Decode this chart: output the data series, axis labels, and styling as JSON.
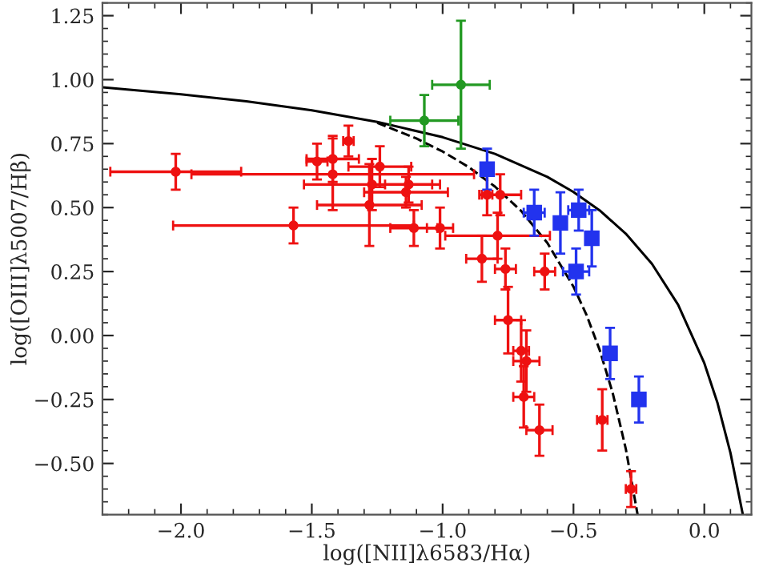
{
  "chart_data": {
    "type": "scatter",
    "xlabel": "log([NII]λ6583/Hα)",
    "ylabel": "log([OIII]λ5007/Hβ)",
    "xlim": [
      -2.3,
      0.18
    ],
    "ylim": [
      -0.7,
      1.3
    ],
    "xticks": [
      {
        "value": -2.0,
        "label": "−2.0"
      },
      {
        "value": -1.5,
        "label": "−1.5"
      },
      {
        "value": -1.0,
        "label": "−1.0"
      },
      {
        "value": -0.5,
        "label": "−0.5"
      },
      {
        "value": 0.0,
        "label": "0.0"
      }
    ],
    "yticks": [
      {
        "value": -0.5,
        "label": "−0.50"
      },
      {
        "value": -0.25,
        "label": "−0.25"
      },
      {
        "value": 0.0,
        "label": "0.00"
      },
      {
        "value": 0.25,
        "label": "0.25"
      },
      {
        "value": 0.5,
        "label": "0.50"
      },
      {
        "value": 0.75,
        "label": "0.75"
      },
      {
        "value": 1.0,
        "label": "1.00"
      },
      {
        "value": 1.25,
        "label": "1.25"
      }
    ],
    "grid": false,
    "legend": false,
    "series": [
      {
        "type": "line",
        "color": "#000000",
        "line_style": "solid",
        "x": [
          -2.3,
          -2.0,
          -1.75,
          -1.5,
          -1.25,
          -1.0,
          -0.8,
          -0.6,
          -0.5,
          -0.4,
          -0.3,
          -0.2,
          -0.1,
          0.0,
          0.05,
          0.1,
          0.147
        ],
        "values": [
          0.97,
          0.943,
          0.915,
          0.88,
          0.835,
          0.775,
          0.71,
          0.62,
          0.561,
          0.489,
          0.398,
          0.28,
          0.12,
          -0.108,
          -0.262,
          -0.459,
          -0.699
        ]
      },
      {
        "type": "line",
        "color": "#000000",
        "line_style": "dashed",
        "x": [
          -1.25,
          -1.1,
          -1.0,
          -0.9,
          -0.8,
          -0.7,
          -0.6,
          -0.5,
          -0.45,
          -0.4,
          -0.35,
          -0.3,
          -0.255
        ],
        "values": [
          0.831,
          0.77,
          0.719,
          0.658,
          0.582,
          0.487,
          0.362,
          0.191,
          0.08,
          -0.056,
          -0.225,
          -0.443,
          -0.7
        ]
      },
      {
        "color": "#ee1111",
        "marker": "circle",
        "x": [
          -2.02,
          -1.57,
          -1.48,
          -1.42,
          -1.42,
          -1.36,
          -1.24,
          -1.27,
          -1.13,
          -1.14,
          -1.28,
          -1.11,
          -1.01,
          -0.83,
          -0.78,
          -0.79,
          -0.85,
          -0.76,
          -0.61,
          -0.75,
          -0.7,
          -0.68,
          -0.69,
          -0.63,
          -0.39,
          -0.28
        ],
        "values": [
          0.64,
          0.43,
          0.68,
          0.69,
          0.63,
          0.76,
          0.66,
          0.59,
          0.59,
          0.56,
          0.51,
          0.42,
          0.42,
          0.55,
          0.55,
          0.39,
          0.3,
          0.26,
          0.25,
          0.06,
          -0.06,
          -0.1,
          -0.24,
          -0.37,
          -0.33,
          -0.6
        ],
        "errors": [
          0.07,
          0.07,
          0.07,
          0.09,
          0.14,
          0.06,
          0.08,
          0.1,
          0.07,
          0.06,
          0.16,
          0.07,
          0.08,
          0.08,
          0.08,
          0.09,
          0.09,
          0.08,
          0.07,
          0.13,
          0.12,
          0.12,
          0.12,
          0.1,
          0.12,
          0.07
        ],
        "xerrors": [
          0.25,
          0.46,
          0.04,
          0.1,
          0.54,
          0.02,
          0.12,
          0.26,
          0.09,
          0.16,
          0.2,
          0.09,
          0.05,
          0.02,
          0.08,
          0.2,
          0.06,
          0.04,
          0.04,
          0.05,
          0.03,
          0.05,
          0.04,
          0.05,
          0.02,
          0.02
        ]
      },
      {
        "color": "#229922",
        "marker": "circle",
        "x": [
          -1.07,
          -0.93
        ],
        "values": [
          0.84,
          0.98
        ],
        "errors": [
          0.1,
          0.25
        ],
        "xerrors": [
          0.13,
          0.11
        ]
      },
      {
        "color": "#2233ee",
        "marker": "square",
        "x": [
          -0.83,
          -0.65,
          -0.55,
          -0.48,
          -0.43,
          -0.49,
          -0.36,
          -0.25
        ],
        "values": [
          0.65,
          0.48,
          0.44,
          0.49,
          0.38,
          0.25,
          -0.07,
          -0.25
        ],
        "errors": [
          0.08,
          0.09,
          0.12,
          0.08,
          0.11,
          0.09,
          0.1,
          0.09
        ],
        "xerrors": [
          null,
          0.04,
          null,
          0.04,
          null,
          0.05,
          null,
          null
        ]
      }
    ]
  }
}
